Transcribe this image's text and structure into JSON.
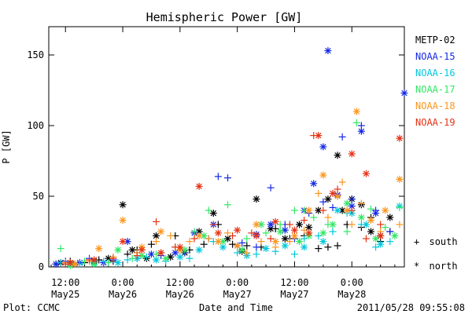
{
  "chart_data": {
    "type": "scatter",
    "title": "Hemispheric Power [GW]",
    "ylabel": "P [GW]",
    "xlabel": "Date and Time",
    "ylim": [
      0,
      170
    ],
    "yticks": [
      0,
      50,
      100,
      150
    ],
    "x_unit": "hours since 2011-05-25 00:00 UT",
    "xlim": [
      8.5,
      83
    ],
    "xticks": [
      {
        "t": 12,
        "line1": "12:00",
        "line2": "May25"
      },
      {
        "t": 24,
        "line1": "0:00",
        "line2": "May26"
      },
      {
        "t": 36,
        "line1": "12:00",
        "line2": "May26"
      },
      {
        "t": 48,
        "line1": "0:00",
        "line2": "May27"
      },
      {
        "t": 60,
        "line1": "12:00",
        "line2": "May27"
      },
      {
        "t": 72,
        "line1": "0:00",
        "line2": "May28"
      }
    ],
    "marker_legend": [
      {
        "symbol": "+",
        "label": "south"
      },
      {
        "symbol": "*",
        "label": "north"
      }
    ],
    "series": [
      {
        "name": "METP-02",
        "color": "#000000",
        "south": [
          [
            10,
            2
          ],
          [
            13,
            4
          ],
          [
            16,
            3
          ],
          [
            19,
            5
          ],
          [
            22,
            4
          ],
          [
            25,
            9
          ],
          [
            27,
            12
          ],
          [
            30,
            16
          ],
          [
            32,
            10
          ],
          [
            35,
            22
          ],
          [
            38,
            12
          ],
          [
            41,
            16
          ],
          [
            44,
            30
          ],
          [
            47,
            16
          ],
          [
            50,
            15
          ],
          [
            53,
            14
          ],
          [
            56,
            27
          ],
          [
            59,
            20
          ],
          [
            62,
            22
          ],
          [
            65,
            13
          ],
          [
            67,
            14
          ],
          [
            69,
            15
          ],
          [
            71,
            30
          ],
          [
            74,
            28
          ],
          [
            76,
            35
          ],
          [
            78,
            18
          ],
          [
            80,
            25
          ]
        ],
        "north": [
          [
            11,
            3
          ],
          [
            14,
            2
          ],
          [
            18,
            4
          ],
          [
            21,
            6
          ],
          [
            24,
            44
          ],
          [
            26,
            12
          ],
          [
            29,
            6
          ],
          [
            31,
            22
          ],
          [
            34,
            7
          ],
          [
            37,
            10
          ],
          [
            40,
            25
          ],
          [
            43,
            38
          ],
          [
            46,
            20
          ],
          [
            49,
            11
          ],
          [
            52,
            48
          ],
          [
            55,
            27
          ],
          [
            58,
            20
          ],
          [
            61,
            30
          ],
          [
            63,
            28
          ],
          [
            65,
            40
          ],
          [
            67,
            48
          ],
          [
            69,
            79
          ],
          [
            70,
            40
          ],
          [
            72,
            48
          ],
          [
            74,
            44
          ],
          [
            76,
            25
          ],
          [
            78,
            22
          ],
          [
            80,
            35
          ]
        ]
      },
      {
        "name": "NOAA-15",
        "color": "#1428e6",
        "south": [
          [
            12,
            4
          ],
          [
            17,
            6
          ],
          [
            22,
            5
          ],
          [
            27,
            6
          ],
          [
            32,
            8
          ],
          [
            37,
            10
          ],
          [
            42,
            20
          ],
          [
            44,
            64
          ],
          [
            46,
            63
          ],
          [
            49,
            17
          ],
          [
            52,
            14
          ],
          [
            55,
            56
          ],
          [
            58,
            30
          ],
          [
            60,
            20
          ],
          [
            63,
            38
          ],
          [
            66,
            46
          ],
          [
            68,
            42
          ],
          [
            70,
            92
          ],
          [
            72,
            48
          ],
          [
            74,
            100
          ],
          [
            77,
            40
          ],
          [
            80,
            25
          ]
        ],
        "north": [
          [
            10,
            2
          ],
          [
            15,
            3
          ],
          [
            20,
            3
          ],
          [
            25,
            18
          ],
          [
            30,
            9
          ],
          [
            35,
            10
          ],
          [
            39,
            24
          ],
          [
            43,
            30
          ],
          [
            48,
            15
          ],
          [
            52,
            23
          ],
          [
            55,
            30
          ],
          [
            58,
            26
          ],
          [
            62,
            40
          ],
          [
            64,
            59
          ],
          [
            66,
            85
          ],
          [
            67,
            153
          ],
          [
            69,
            51
          ],
          [
            72,
            43
          ],
          [
            74,
            96
          ],
          [
            77,
            38
          ],
          [
            83,
            123
          ]
        ]
      },
      {
        "name": "NOAA-16",
        "color": "#00c8dc",
        "south": [
          [
            11,
            3
          ],
          [
            15,
            2
          ],
          [
            20,
            4
          ],
          [
            25,
            5
          ],
          [
            29,
            7
          ],
          [
            33,
            4
          ],
          [
            38,
            6
          ],
          [
            43,
            18
          ],
          [
            48,
            10
          ],
          [
            52,
            9
          ],
          [
            56,
            11
          ],
          [
            60,
            9
          ],
          [
            62,
            20
          ],
          [
            65,
            22
          ],
          [
            68,
            25
          ],
          [
            71,
            38
          ],
          [
            74,
            30
          ],
          [
            77,
            14
          ],
          [
            80,
            18
          ]
        ],
        "north": [
          [
            13,
            2
          ],
          [
            18,
            3
          ],
          [
            23,
            3
          ],
          [
            27,
            6
          ],
          [
            31,
            5
          ],
          [
            36,
            7
          ],
          [
            40,
            12
          ],
          [
            45,
            14
          ],
          [
            50,
            8
          ],
          [
            54,
            13
          ],
          [
            58,
            15
          ],
          [
            62,
            14
          ],
          [
            66,
            18
          ],
          [
            69,
            40
          ],
          [
            72,
            38
          ],
          [
            75,
            30
          ],
          [
            78,
            16
          ],
          [
            82,
            43
          ]
        ]
      },
      {
        "name": "NOAA-17",
        "color": "#32e664",
        "south": [
          [
            11,
            13
          ],
          [
            16,
            4
          ],
          [
            21,
            3
          ],
          [
            26,
            6
          ],
          [
            31,
            9
          ],
          [
            35,
            14
          ],
          [
            39,
            25
          ],
          [
            42,
            40
          ],
          [
            46,
            44
          ],
          [
            50,
            20
          ],
          [
            54,
            24
          ],
          [
            57,
            30
          ],
          [
            60,
            40
          ],
          [
            62,
            40
          ],
          [
            64,
            35
          ],
          [
            67,
            30
          ],
          [
            69,
            50
          ],
          [
            71,
            25
          ],
          [
            73,
            102
          ],
          [
            76,
            41
          ],
          [
            79,
            28
          ],
          [
            82,
            42
          ]
        ],
        "north": [
          [
            13,
            1
          ],
          [
            18,
            2
          ],
          [
            23,
            12
          ],
          [
            28,
            8
          ],
          [
            33,
            6
          ],
          [
            37,
            12
          ],
          [
            41,
            22
          ],
          [
            45,
            18
          ],
          [
            49,
            12
          ],
          [
            53,
            30
          ],
          [
            57,
            25
          ],
          [
            61,
            18
          ],
          [
            63,
            22
          ],
          [
            66,
            24
          ],
          [
            68,
            30
          ],
          [
            71,
            45
          ],
          [
            74,
            35
          ],
          [
            77,
            20
          ],
          [
            81,
            22
          ]
        ]
      },
      {
        "name": "NOAA-18",
        "color": "#fa961e",
        "south": [
          [
            12,
            3
          ],
          [
            17,
            4
          ],
          [
            22,
            7
          ],
          [
            27,
            10
          ],
          [
            31,
            18
          ],
          [
            34,
            22
          ],
          [
            38,
            18
          ],
          [
            42,
            20
          ],
          [
            46,
            24
          ],
          [
            50,
            10
          ],
          [
            53,
            18
          ],
          [
            56,
            14
          ],
          [
            59,
            18
          ],
          [
            62,
            26
          ],
          [
            65,
            52
          ],
          [
            67,
            35
          ],
          [
            70,
            60
          ],
          [
            72,
            30
          ],
          [
            74,
            45
          ],
          [
            78,
            25
          ],
          [
            82,
            30
          ]
        ],
        "north": [
          [
            14,
            2
          ],
          [
            19,
            13
          ],
          [
            24,
            33
          ],
          [
            28,
            14
          ],
          [
            32,
            25
          ],
          [
            36,
            12
          ],
          [
            40,
            22
          ],
          [
            44,
            18
          ],
          [
            48,
            15
          ],
          [
            52,
            30
          ],
          [
            56,
            18
          ],
          [
            60,
            22
          ],
          [
            63,
            40
          ],
          [
            66,
            65
          ],
          [
            69,
            50
          ],
          [
            71,
            40
          ],
          [
            73,
            110
          ],
          [
            76,
            33
          ],
          [
            79,
            40
          ],
          [
            82,
            62
          ]
        ]
      },
      {
        "name": "NOAA-19",
        "color": "#e63214",
        "south": [
          [
            12,
            2
          ],
          [
            17,
            5
          ],
          [
            22,
            6
          ],
          [
            27,
            8
          ],
          [
            31,
            32
          ],
          [
            35,
            14
          ],
          [
            39,
            20
          ],
          [
            43,
            30
          ],
          [
            47,
            22
          ],
          [
            51,
            24
          ],
          [
            55,
            20
          ],
          [
            59,
            30
          ],
          [
            62,
            33
          ],
          [
            64,
            93
          ],
          [
            66,
            40
          ],
          [
            69,
            55
          ],
          [
            72,
            40
          ],
          [
            75,
            20
          ],
          [
            78,
            30
          ]
        ],
        "north": [
          [
            13,
            3
          ],
          [
            18,
            5
          ],
          [
            24,
            18
          ],
          [
            28,
            12
          ],
          [
            32,
            10
          ],
          [
            36,
            14
          ],
          [
            40,
            57
          ],
          [
            44,
            24
          ],
          [
            48,
            26
          ],
          [
            52,
            22
          ],
          [
            56,
            32
          ],
          [
            60,
            26
          ],
          [
            63,
            24
          ],
          [
            65,
            93
          ],
          [
            68,
            52
          ],
          [
            72,
            80
          ],
          [
            75,
            66
          ],
          [
            78,
            22
          ],
          [
            82,
            91
          ]
        ]
      }
    ]
  },
  "footer": {
    "left": "Plot: CCMC",
    "center": "Date and Time",
    "right": "2011/05/28 09:55:08"
  }
}
